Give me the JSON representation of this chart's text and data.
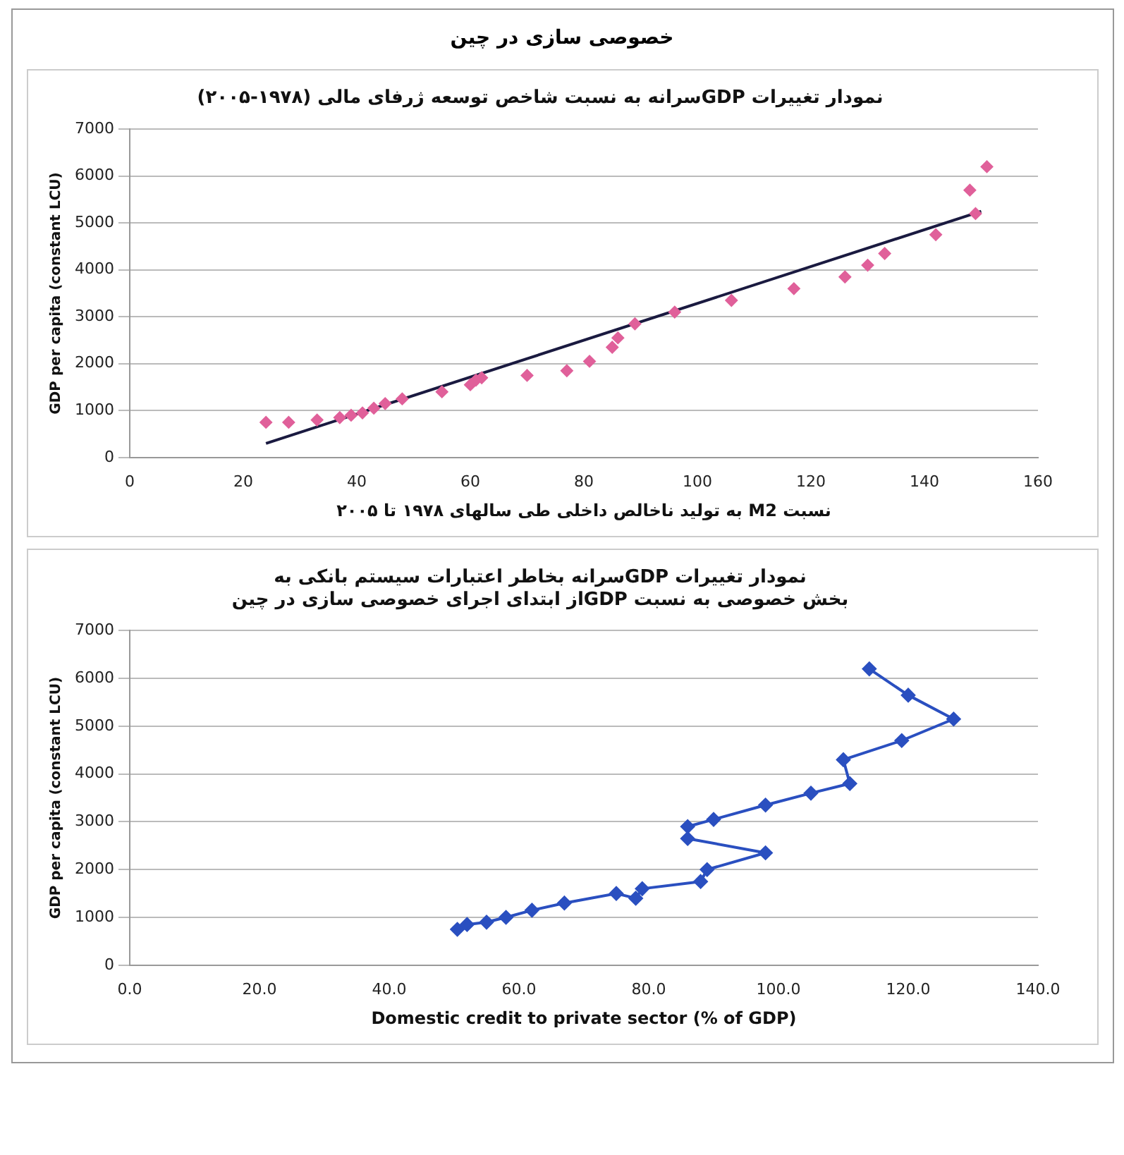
{
  "chart_data": [
    {
      "type": "scatter",
      "title": "نمودار تغییرات GDPسرانه به نسبت شاخص توسعه ژرفای مالی (۱۹۷۸-۲۰۰۵)",
      "xlabel": "نسبت M2 به تولید ناخالص داخلی طی سالهای ۱۹۷۸ تا ۲۰۰۵",
      "ylabel": "GDP per capita (constant LCU)",
      "annotations": [
        "خصوصی سازی در چین"
      ],
      "xlim": [
        0,
        160
      ],
      "xticks": [
        0,
        20,
        40,
        60,
        80,
        100,
        120,
        140,
        160
      ],
      "ylim": [
        0,
        7000
      ],
      "yticks": [
        0,
        1000,
        2000,
        3000,
        4000,
        5000,
        6000,
        7000
      ],
      "grid": "y",
      "legend": false,
      "marker": "diamond",
      "series": [
        {
          "color": "#e0609a",
          "x": [
            24,
            28,
            33,
            37,
            39,
            41,
            43,
            45,
            48,
            55,
            60,
            61,
            62,
            70,
            77,
            81,
            85,
            86,
            89,
            96,
            106,
            117,
            126,
            130,
            133,
            142,
            148,
            149,
            151
          ],
          "values": [
            750,
            750,
            800,
            850,
            900,
            950,
            1050,
            1150,
            1250,
            1400,
            1550,
            1650,
            1700,
            1750,
            1850,
            2050,
            2350,
            2550,
            2850,
            3100,
            3350,
            3600,
            3850,
            4100,
            4350,
            4750,
            5700,
            5200,
            6200
          ]
        },
        {
          "type": "line",
          "marker": "none",
          "color": "#1a1a40",
          "x": [
            24,
            150
          ],
          "values": [
            300,
            5250
          ]
        }
      ]
    },
    {
      "type": "line",
      "title": "نمودار تغییرات GDPسرانه بخاطر اعتبارات سیستم بانکی به\nبخش خصوصی به نسبت GDPاز ابتدای اجرای خصوصی سازی در چین",
      "xlabel": "Domestic credit to private sector (% of GDP)",
      "ylabel": "GDP per capita (constant LCU)",
      "xlim": [
        0,
        140
      ],
      "xticks": [
        {
          "value": 0,
          "label": "0.0"
        },
        {
          "value": 20,
          "label": "20.0"
        },
        {
          "value": 40,
          "label": "40.0"
        },
        {
          "value": 60,
          "label": "60.0"
        },
        {
          "value": 80,
          "label": "80.0"
        },
        {
          "value": 100,
          "label": "100.0"
        },
        {
          "value": 120,
          "label": "120.0"
        },
        {
          "value": 140,
          "label": "140.0"
        }
      ],
      "ylim": [
        0,
        7000
      ],
      "yticks": [
        0,
        1000,
        2000,
        3000,
        4000,
        5000,
        6000,
        7000
      ],
      "grid": "y",
      "legend": false,
      "marker": "diamond",
      "series": [
        {
          "color": "#2a4fc0",
          "x": [
            50.5,
            52,
            55,
            58,
            62,
            67,
            75,
            78,
            79,
            88,
            89,
            98,
            86,
            86,
            90,
            98,
            105,
            111,
            110,
            119,
            127,
            120,
            114
          ],
          "values": [
            750,
            850,
            900,
            1000,
            1150,
            1300,
            1500,
            1400,
            1600,
            1750,
            2000,
            2350,
            2650,
            2900,
            3050,
            3350,
            3600,
            3800,
            4300,
            4700,
            5150,
            5650,
            6200
          ]
        }
      ]
    }
  ]
}
